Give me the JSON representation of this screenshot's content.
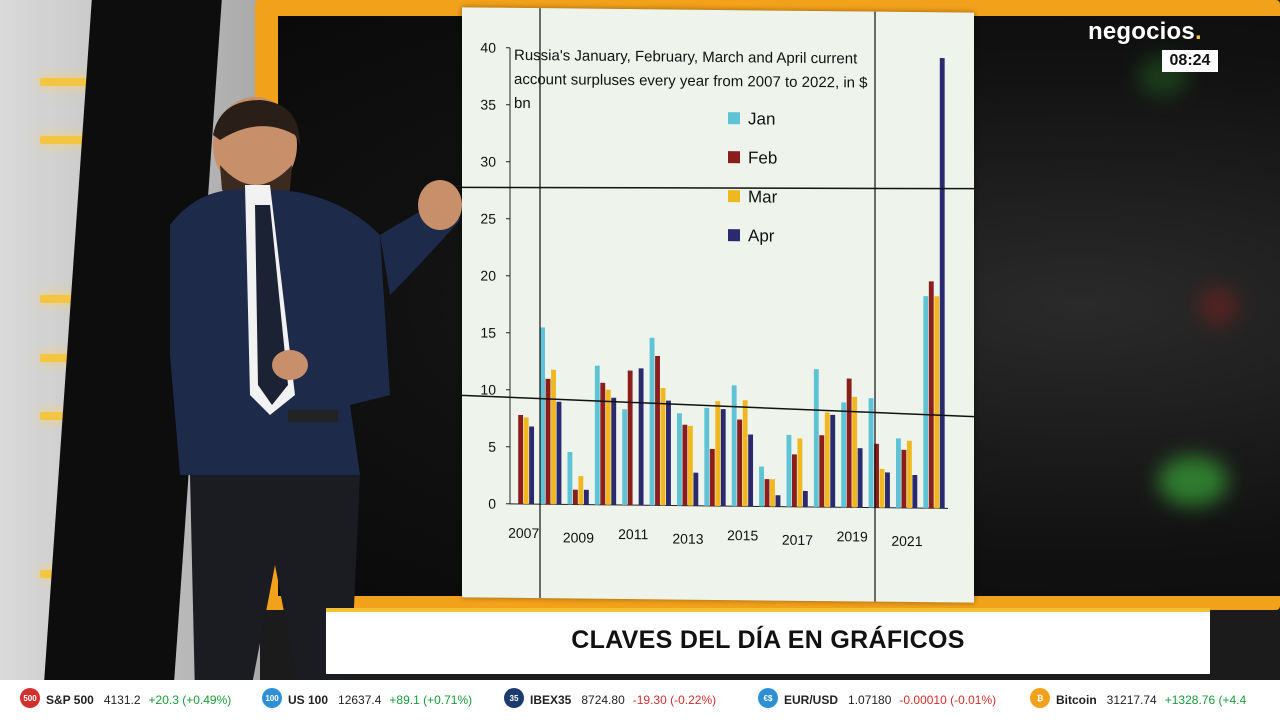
{
  "channel": {
    "logo_text": "negocios",
    "logo_dot": ".",
    "clock": "08:24"
  },
  "banner": {
    "title": "CLAVES DEL DÍA EN GRÁFICOS"
  },
  "colors": {
    "jan": "#5fc3d6",
    "feb": "#8c1d1d",
    "mar": "#f0b81e",
    "apr": "#2c2a6e",
    "accent": "#f2a11a"
  },
  "chart_data": {
    "type": "bar",
    "title_lines": [
      "Russia's January, February, March and April current",
      "account surpluses every year from 2007 to 2022,  in $",
      "bn"
    ],
    "x": [
      2007,
      2008,
      2009,
      2010,
      2011,
      2012,
      2013,
      2014,
      2015,
      2016,
      2017,
      2018,
      2019,
      2020,
      2021,
      2022
    ],
    "x_tick_labels": [
      "2007",
      "2009",
      "2011",
      "2013",
      "2015",
      "2017",
      "2019",
      "2021"
    ],
    "y_tick_labels": [
      "0",
      "5",
      "10",
      "15",
      "20",
      "25",
      "30",
      "35",
      "40"
    ],
    "ylim": [
      0,
      40
    ],
    "legend_placement": "upper-middle",
    "series": [
      {
        "name": "Jan",
        "values": [
          0,
          15.5,
          4.6,
          12.2,
          8.4,
          14.7,
          8.1,
          8.6,
          10.6,
          3.5,
          6.3,
          12.1,
          9.2,
          9.6,
          6.1,
          18.6
        ]
      },
      {
        "name": "Feb",
        "values": [
          7.8,
          11.0,
          1.3,
          10.7,
          11.8,
          13.1,
          7.1,
          5.0,
          7.6,
          2.4,
          4.6,
          6.3,
          11.3,
          5.6,
          5.1,
          19.9
        ]
      },
      {
        "name": "Mar",
        "values": [
          7.6,
          11.8,
          2.5,
          10.1,
          0,
          10.3,
          7.0,
          9.2,
          9.3,
          2.4,
          6.0,
          8.3,
          9.7,
          3.4,
          5.9,
          18.6
        ]
      },
      {
        "name": "Apr",
        "values": [
          6.8,
          9.0,
          1.3,
          9.4,
          12.0,
          9.2,
          2.9,
          8.5,
          6.3,
          1.0,
          1.4,
          8.1,
          5.2,
          3.1,
          2.9,
          39.5
        ]
      }
    ]
  },
  "ticker": [
    {
      "icon_label": "500",
      "icon_color": "#d0312d",
      "name": "S&P 500",
      "price": "4131.2",
      "change": "+20.3 (+0.49%)",
      "direction": "up"
    },
    {
      "icon_label": "100",
      "icon_color": "#2d8fd5",
      "name": "US 100",
      "price": "12637.4",
      "change": "+89.1 (+0.71%)",
      "direction": "up"
    },
    {
      "icon_label": "35",
      "icon_color": "#1c3b6e",
      "name": "IBEX35",
      "price": "8724.80",
      "change": "-19.30 (-0.22%)",
      "direction": "down"
    },
    {
      "icon_label": "€$",
      "icon_color": "#2d8fd5",
      "name": "EUR/USD",
      "price": "1.07180",
      "change": "-0.00010 (-0.01%)",
      "direction": "down"
    },
    {
      "icon_label": "₿",
      "icon_color": "#f2a11a",
      "name": "Bitcoin",
      "price": "31217.74",
      "change": "+1328.76 (+4.4",
      "direction": "up"
    }
  ]
}
